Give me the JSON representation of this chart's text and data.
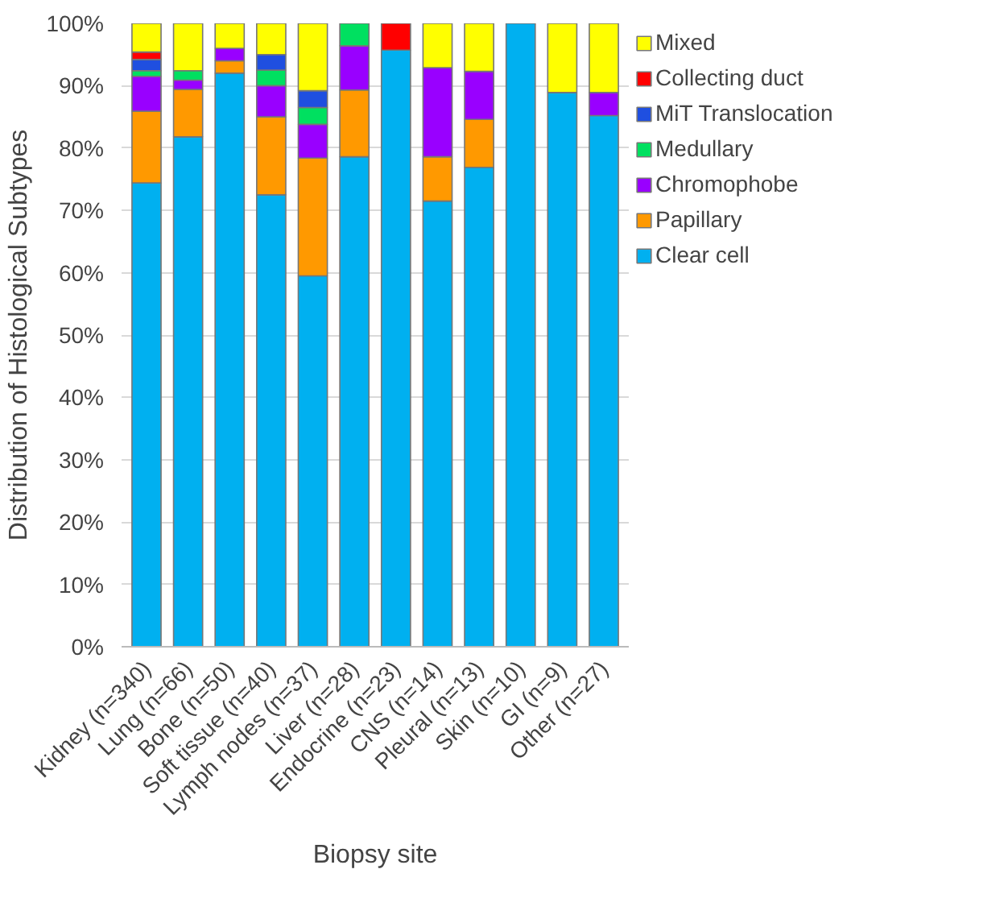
{
  "chart_data": {
    "type": "bar",
    "stacked": true,
    "xlabel": "Biopsy site",
    "ylabel": "Distribution of Histological Subtypes",
    "categories": [
      "Kidney (n=340)",
      "Lung (n=66)",
      "Bone (n=50)",
      "Soft tissue (n=40)",
      "Lymph nodes (n=37)",
      "Liver (n=28)",
      "Endocrine (n=23)",
      "CNS (n=14)",
      "Pleural (n=13)",
      "Skin (n=10)",
      "GI (n=9)",
      "Other (n=27)"
    ],
    "series": [
      {
        "name": "Clear cell",
        "color": "#00b0f0",
        "values": [
          74.4,
          81.8,
          92,
          72.5,
          59.5,
          78.6,
          95.7,
          71.5,
          76.9,
          100,
          88.9,
          85.2
        ]
      },
      {
        "name": "Papillary",
        "color": "#ff9900",
        "values": [
          11.5,
          7.6,
          2,
          12.5,
          18.9,
          10.7,
          0,
          7.1,
          7.7,
          0,
          0,
          0
        ]
      },
      {
        "name": "Chromophobe",
        "color": "#9900ff",
        "values": [
          5.6,
          1.5,
          2,
          5,
          5.4,
          7.1,
          0,
          14.3,
          7.7,
          0,
          0,
          3.7
        ]
      },
      {
        "name": "Medullary",
        "color": "#00e060",
        "values": [
          0.9,
          1.5,
          0,
          2.5,
          2.7,
          3.6,
          0,
          0,
          0,
          0,
          0,
          0
        ]
      },
      {
        "name": "MiT Translocation",
        "color": "#1f4fe0",
        "values": [
          1.8,
          0,
          0,
          2.5,
          2.7,
          0,
          0,
          0,
          0,
          0,
          0,
          0
        ]
      },
      {
        "name": "Collecting duct",
        "color": "#ff0000",
        "values": [
          1.2,
          0,
          0,
          0,
          0,
          0,
          4.3,
          0,
          0,
          0,
          0,
          0
        ]
      },
      {
        "name": "Mixed",
        "color": "#ffff00",
        "values": [
          4.6,
          7.6,
          4,
          5,
          10.8,
          0,
          0,
          7.1,
          7.7,
          0,
          11.1,
          11.1
        ]
      }
    ],
    "ylim": [
      0,
      100
    ],
    "yticks": [
      {
        "value": 0,
        "label": "0%"
      },
      {
        "value": 10,
        "label": "10%"
      },
      {
        "value": 20,
        "label": "20%"
      },
      {
        "value": 30,
        "label": "30%"
      },
      {
        "value": 40,
        "label": "40%"
      },
      {
        "value": 50,
        "label": "50%"
      },
      {
        "value": 60,
        "label": "60%"
      },
      {
        "value": 70,
        "label": "70%"
      },
      {
        "value": 80,
        "label": "80%"
      },
      {
        "value": 90,
        "label": "90%"
      },
      {
        "value": 100,
        "label": "100%"
      }
    ],
    "grid": "y",
    "legend": "right"
  }
}
